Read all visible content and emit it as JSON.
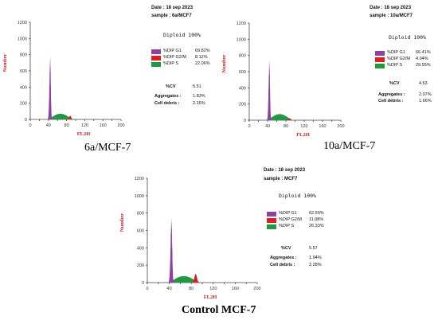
{
  "colors": {
    "g1": "#8f3fa6",
    "g2m": "#e01e1e",
    "s": "#1f9a3f",
    "axis_title": "#d11c1c"
  },
  "chart_data": [
    {
      "type": "histogram",
      "caption": "6a/MCF-7",
      "date": "Date : 18 sep 2023",
      "sample": "sample : 6a/MCF7",
      "diploid": "Diploid 100%",
      "xlabel": "FL2H",
      "ylabel": "Number",
      "xlim": [
        0,
        200
      ],
      "ylim": [
        0,
        1200
      ],
      "x_ticks": [
        "0",
        "20",
        "40",
        "60",
        "80",
        "100",
        "120",
        "140",
        "160",
        "180",
        "200"
      ],
      "y_ticks": [
        "0",
        "200",
        "400",
        "600",
        "800",
        "1000",
        "1200"
      ],
      "series": [
        {
          "name": "%DIP G1",
          "value": "69.82%",
          "peak_x": 44,
          "peak_y": 800
        },
        {
          "name": "%DIP G2/M",
          "value": "8.12%",
          "peak_x": 88,
          "peak_y": 45
        },
        {
          "name": "%DIP S",
          "value": "22.06%",
          "peak_x": 65,
          "peak_y": 70
        }
      ],
      "stats": [
        {
          "label": "%CV",
          "value": "5.51"
        },
        {
          "label": "Aggregates :",
          "value": "1.83%"
        },
        {
          "label": "Cell debris :",
          "value": "2.15%"
        }
      ]
    },
    {
      "type": "histogram",
      "caption": "10a/MCF-7",
      "date": "Date : 18 sep 2023",
      "sample": "sample : 10a/MCF7",
      "diploid": "Diploid 100%",
      "xlabel": "FL2H",
      "ylabel": "Number",
      "xlim": [
        0,
        200
      ],
      "ylim": [
        0,
        1200
      ],
      "x_ticks": [
        "0",
        "20",
        "40",
        "60",
        "80",
        "100",
        "120",
        "140",
        "160",
        "180",
        "200"
      ],
      "y_ticks": [
        "0",
        "200",
        "400",
        "600",
        "800",
        "1000",
        "1200"
      ],
      "series": [
        {
          "name": "%DIP G1",
          "value": "66.41%",
          "peak_x": 44,
          "peak_y": 760
        },
        {
          "name": "%DIP G2/M",
          "value": "4.04%",
          "peak_x": 88,
          "peak_y": 25
        },
        {
          "name": "%DIP S",
          "value": "29.55%",
          "peak_x": 68,
          "peak_y": 75
        }
      ],
      "stats": [
        {
          "label": "%CV",
          "value": "4.63"
        },
        {
          "label": "Aggregates :",
          "value": "2.07%"
        },
        {
          "label": "Cell debris :",
          "value": "1.66%"
        }
      ]
    },
    {
      "type": "histogram",
      "caption": "Control MCF-7",
      "date": "Date : 18 sep 2023",
      "sample": "sample : MCF7",
      "diploid": "Diploid 100%",
      "xlabel": "FL2H",
      "ylabel": "Number",
      "xlim": [
        0,
        200
      ],
      "ylim": [
        0,
        1200
      ],
      "x_ticks": [
        "0",
        "20",
        "40",
        "60",
        "80",
        "100",
        "120",
        "140",
        "160",
        "180",
        "200"
      ],
      "y_ticks": [
        "0",
        "200",
        "400",
        "600",
        "800",
        "1000",
        "1200"
      ],
      "series": [
        {
          "name": "%DIP G1",
          "value": "62.59%",
          "peak_x": 44,
          "peak_y": 760
        },
        {
          "name": "%DIP G2/M",
          "value": "11.08%",
          "peak_x": 88,
          "peak_y": 100
        },
        {
          "name": "%DIP S",
          "value": "26.33%",
          "peak_x": 65,
          "peak_y": 75
        }
      ],
      "stats": [
        {
          "label": "%CV",
          "value": "5.57"
        },
        {
          "label": "Aggregates :",
          "value": "1.94%"
        },
        {
          "label": "Cell debris :",
          "value": "2.28%"
        }
      ]
    }
  ]
}
